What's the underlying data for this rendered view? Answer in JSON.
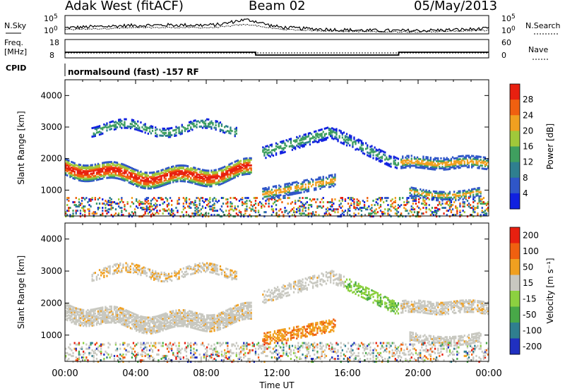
{
  "header": {
    "radar": "Adak West (fitACF)",
    "beam": "Beam 02",
    "date": "05/May/2013"
  },
  "strip_labels": {
    "nsky": "N.Sky",
    "nsearch": "N.Search",
    "freq_line1": "Freq.",
    "freq_line2": "[MHz]",
    "nave": "Nave",
    "cpid": "CPID",
    "cpid_text": "normalsound (fast) -157 RF"
  },
  "strip_ticks": {
    "noise_left": [
      "10^5",
      "10^0"
    ],
    "noise_right": [
      "10^5",
      "10^0"
    ],
    "freq_left": [
      "18",
      "8"
    ],
    "nave_right": [
      "60",
      "0"
    ]
  },
  "chart_data": [
    {
      "type": "line",
      "name": "noise",
      "x_range": [
        0,
        24
      ],
      "description_series": [
        "N.Sky",
        "N.Search"
      ]
    },
    {
      "type": "line",
      "name": "frequency",
      "x_breaks": [
        0,
        10.8,
        18.9,
        24
      ],
      "values": [
        12,
        10,
        12
      ]
    },
    {
      "type": "heatmap",
      "name": "power",
      "ylabel": "Slant Range [km]",
      "yticks": [
        1000,
        2000,
        3000,
        4000
      ],
      "ylim": [
        180,
        4500
      ],
      "colorbar_label": "Power [dB]",
      "colorbar_ticks": [
        "4",
        "8",
        "12",
        "16",
        "20",
        "24",
        "28"
      ],
      "colors": [
        "#1020e0",
        "#2f56c8",
        "#2f7f8f",
        "#3f9f5f",
        "#a0c83a",
        "#f0a020",
        "#f06010",
        "#e82010"
      ]
    },
    {
      "type": "heatmap",
      "name": "velocity",
      "ylabel": "Slant Range [km]",
      "yticks": [
        1000,
        2000,
        3000,
        4000
      ],
      "ylim": [
        180,
        4500
      ],
      "colorbar_label": "Velocity [m s⁻¹]",
      "colorbar_ticks": [
        "200",
        "100",
        "50",
        "15",
        "-15",
        "-50",
        "-100",
        "-200"
      ],
      "colors": [
        "#2030c0",
        "#2f7f8f",
        "#48a848",
        "#8cd040",
        "#c8c8c0",
        "#f0a020",
        "#f06010",
        "#e82010"
      ]
    }
  ],
  "xaxis": {
    "ticks": [
      "00:00",
      "04:00",
      "08:00",
      "12:00",
      "16:00",
      "20:00",
      "00:00"
    ],
    "label": "Time UT"
  }
}
